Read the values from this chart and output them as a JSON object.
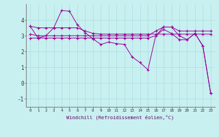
{
  "xlabel": "Windchill (Refroidissement éolien,°C)",
  "background_color": "#c8f0f0",
  "grid_color": "#aadddd",
  "line_color": "#990099",
  "x_ticks": [
    0,
    1,
    2,
    3,
    4,
    5,
    6,
    7,
    8,
    9,
    10,
    11,
    12,
    13,
    14,
    15,
    16,
    17,
    18,
    19,
    20,
    21,
    22,
    23
  ],
  "ylim": [
    -1.5,
    5.0
  ],
  "xlim": [
    -0.5,
    23.5
  ],
  "yticks": [
    -1,
    0,
    1,
    2,
    3,
    4
  ],
  "series": {
    "line_zigzag": [
      3.6,
      2.85,
      3.0,
      3.5,
      4.6,
      4.55,
      3.7,
      3.2,
      2.8,
      2.45,
      2.6,
      2.5,
      2.45,
      1.65,
      1.3,
      0.85,
      3.0,
      3.4,
      3.15,
      2.75,
      2.75,
      3.15,
      2.35,
      -0.65
    ],
    "line_flat_hi": [
      3.6,
      3.5,
      3.5,
      3.5,
      3.5,
      3.5,
      3.5,
      3.3,
      3.15,
      3.1,
      3.1,
      3.1,
      3.1,
      3.1,
      3.1,
      3.1,
      3.1,
      3.1,
      3.1,
      3.1,
      3.1,
      3.1,
      3.1,
      3.1
    ],
    "line_mid": [
      3.1,
      3.0,
      3.0,
      3.0,
      3.0,
      3.0,
      3.0,
      3.0,
      3.0,
      3.0,
      3.0,
      3.0,
      3.0,
      3.0,
      3.0,
      3.0,
      3.3,
      3.55,
      3.55,
      3.3,
      3.3,
      3.3,
      3.3,
      3.3
    ],
    "line_low": [
      2.85,
      2.85,
      2.85,
      2.85,
      2.85,
      2.85,
      2.85,
      2.85,
      2.85,
      2.85,
      2.85,
      2.85,
      2.85,
      2.85,
      2.85,
      2.85,
      3.0,
      3.55,
      3.55,
      3.0,
      2.75,
      3.15,
      2.35,
      -0.65
    ]
  }
}
